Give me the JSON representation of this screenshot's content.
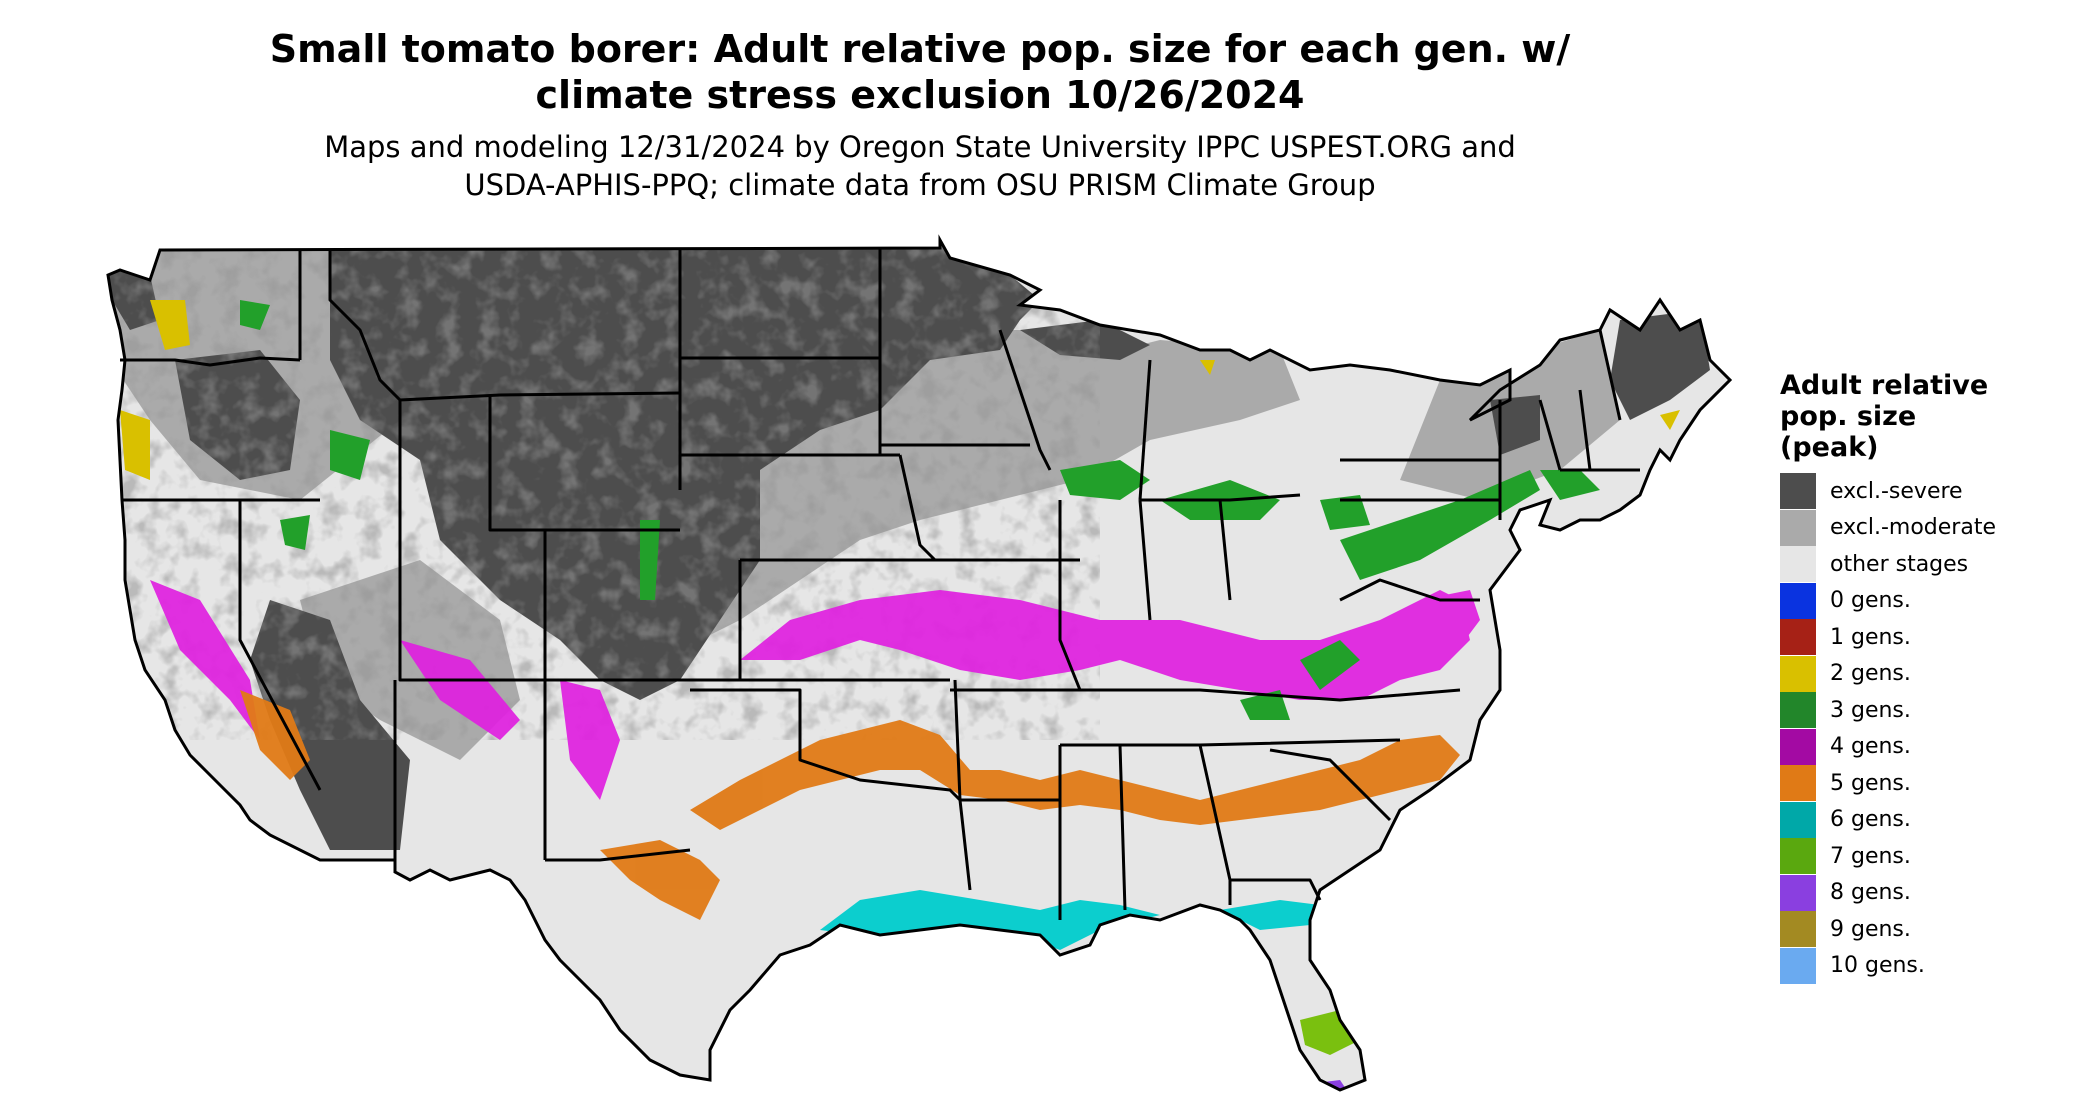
{
  "title_line1": "Small tomato borer: Adult relative pop. size for each gen. w/",
  "title_line2": "climate stress exclusion 10/26/2024",
  "subtitle_line1": "Maps and modeling 12/31/2024 by Oregon State University IPPC USPEST.ORG and",
  "subtitle_line2": "USDA-APHIS-PPQ; climate data from OSU PRISM Climate Group",
  "legend": {
    "title_line1": "Adult relative",
    "title_line2": "pop. size",
    "title_line3": "(peak)",
    "items": [
      {
        "label": "excl.-severe",
        "color": "#4d4d4d"
      },
      {
        "label": "excl.-moderate",
        "color": "#aaaaaa"
      },
      {
        "label": "other stages",
        "color": "#e6e6e6"
      },
      {
        "label": "0 gens.",
        "color": "#0a33e0"
      },
      {
        "label": "1 gens.",
        "color": "#a62116"
      },
      {
        "label": "2 gens.",
        "color": "#d9c000"
      },
      {
        "label": "3 gens.",
        "color": "#22862a"
      },
      {
        "label": "4 gens.",
        "color": "#a30aa3"
      },
      {
        "label": "5 gens.",
        "color": "#e07a16"
      },
      {
        "label": "6 gens.",
        "color": "#00a8a8"
      },
      {
        "label": "7 gens.",
        "color": "#5aa80f"
      },
      {
        "label": "8 gens.",
        "color": "#8a3fe0"
      },
      {
        "label": "9 gens.",
        "color": "#a38a22"
      },
      {
        "label": "10 gens.",
        "color": "#6aaaf0"
      }
    ]
  },
  "map_colors": {
    "severe": "#4d4d4d",
    "moderate": "#aaaaaa",
    "other": "#e6e6e6",
    "magenta": "#e020e0",
    "orange": "#e07a16",
    "cyan": "#00cccc",
    "green": "#22a02a",
    "yellow": "#d9c000",
    "lime": "#7ac00f",
    "purple": "#8a3fe0"
  }
}
